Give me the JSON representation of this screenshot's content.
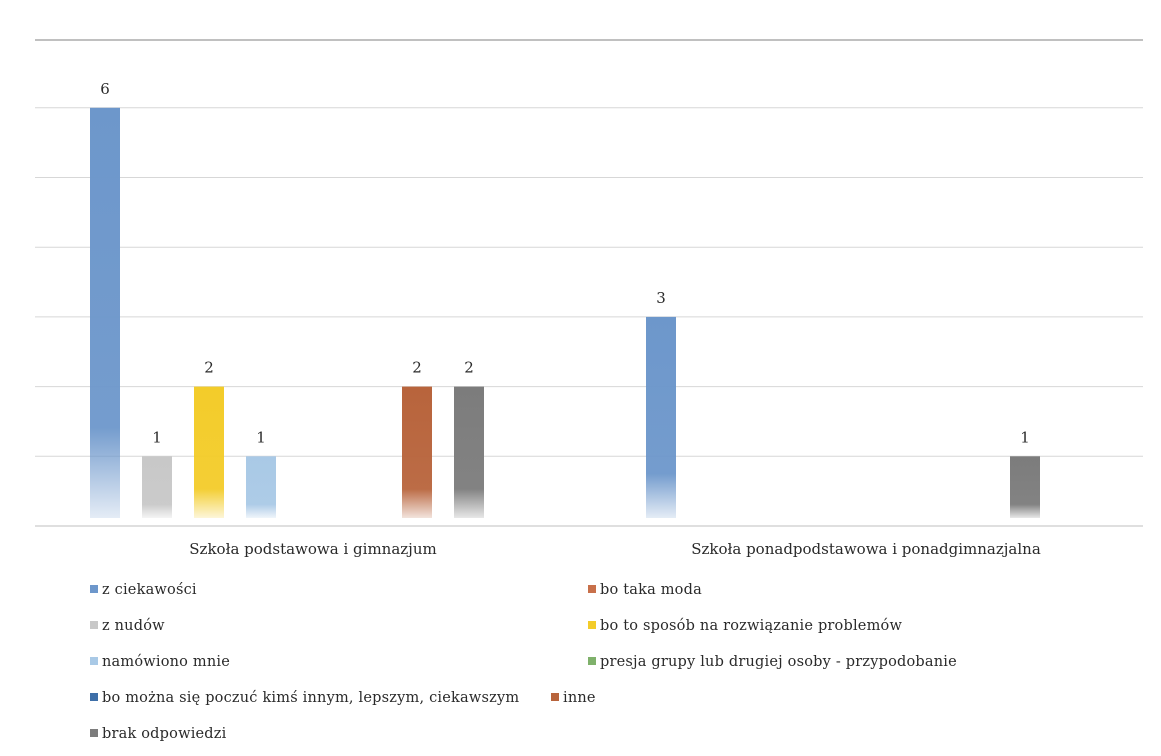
{
  "chart_data": {
    "type": "bar",
    "title": "",
    "xlabel": "",
    "ylabel": "",
    "ylim": [
      0,
      6.5
    ],
    "grid": true,
    "legend_position": "bottom",
    "categories": [
      "Szkoła podstawowa i gimnazjum",
      "Szkoła ponadpodstawowa i ponadgimnazjalna"
    ],
    "series": [
      {
        "name": "z ciekawości",
        "color": "#6d97cb",
        "values": [
          6,
          3
        ]
      },
      {
        "name": "z nudów",
        "color": "#c8c8c8",
        "values": [
          1,
          0
        ]
      },
      {
        "name": "namówiono mnie",
        "color": "#a9c9e6",
        "values": [
          1,
          0
        ]
      },
      {
        "name": "bo można się poczuć kimś innym, lepszym, ciekawszym",
        "color": "#3e6fa8",
        "values": [
          0,
          0
        ]
      },
      {
        "name": "brak odpowiedzi",
        "color": "#7c7c7c",
        "values": [
          2,
          1
        ]
      },
      {
        "name": "bo taka moda",
        "color": "#c8704a",
        "values": [
          0,
          0
        ]
      },
      {
        "name": "bo to sposób na rozwiązanie problemów",
        "color": "#f3cc2a",
        "values": [
          2,
          0
        ]
      },
      {
        "name": "presja grupy lub drugiej osoby - przypodobanie",
        "color": "#7fb16b",
        "values": [
          0,
          0
        ]
      },
      {
        "name": "inne",
        "color": "#b8643c",
        "values": [
          2,
          0
        ]
      }
    ],
    "bar_order": [
      "z ciekawości",
      "z nudów",
      "bo to sposób na rozwiązanie problemów",
      "namówiono mnie",
      "bo można się poczuć kimś innym, lepszym, ciekawszym",
      "presja grupy lub drugiej osoby - przypodobanie",
      "inne",
      "brak odpowiedzi"
    ]
  }
}
